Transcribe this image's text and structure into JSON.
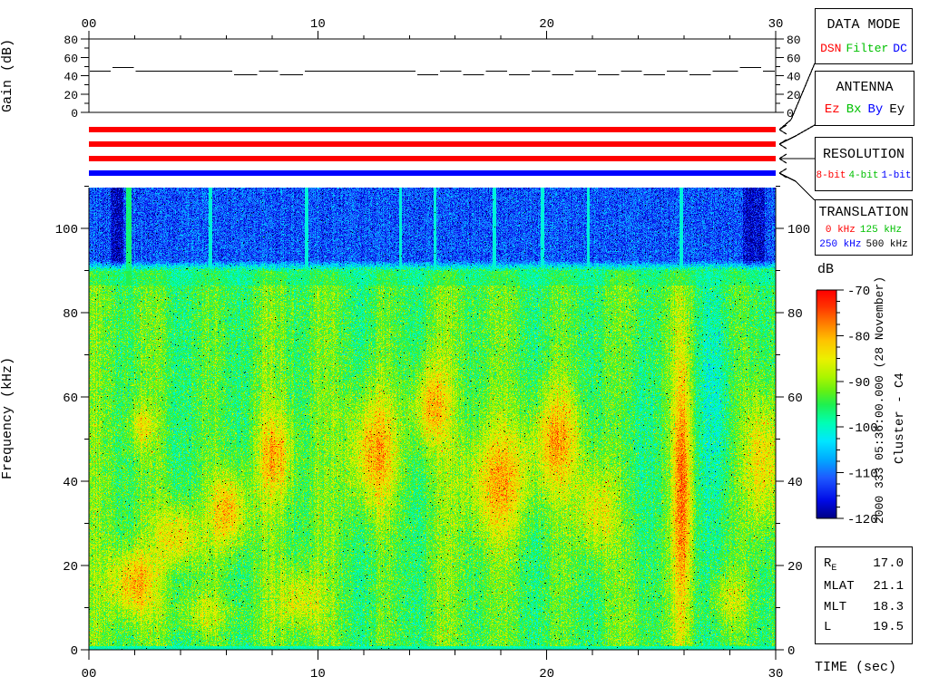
{
  "side_text": {
    "datetime": "2000 333 05:36:00.000 (28 November)",
    "spacecraft": "Cluster - C4"
  },
  "legend_boxes": {
    "data_mode": {
      "title": "DATA MODE",
      "items": [
        {
          "label": "DSN",
          "color": "#ff0000"
        },
        {
          "label": "Filter",
          "color": "#00c000"
        },
        {
          "label": "DC",
          "color": "#0000ff"
        }
      ]
    },
    "antenna": {
      "title": "ANTENNA",
      "items": [
        {
          "label": "Ez",
          "color": "#ff0000"
        },
        {
          "label": "Bx",
          "color": "#00c000"
        },
        {
          "label": "By",
          "color": "#0000ff"
        },
        {
          "label": "Ey",
          "color": "#000000"
        }
      ]
    },
    "resolution": {
      "title": "RESOLUTION",
      "items": [
        {
          "label": "8-bit",
          "color": "#ff0000"
        },
        {
          "label": "4-bit",
          "color": "#00c000"
        },
        {
          "label": "1-bit",
          "color": "#0000ff"
        }
      ]
    },
    "translation": {
      "title": "TRANSLATION",
      "rows": [
        [
          {
            "label": "0 kHz",
            "color": "#ff0000"
          },
          {
            "label": "125 kHz",
            "color": "#00c000"
          }
        ],
        [
          {
            "label": "250 kHz",
            "color": "#0000ff"
          },
          {
            "label": "500 kHz",
            "color": "#000000"
          }
        ]
      ]
    }
  },
  "status_bars": [
    {
      "name": "data-mode",
      "color": "#ff0000"
    },
    {
      "name": "antenna",
      "color": "#ff0000"
    },
    {
      "name": "resolution",
      "color": "#ff0000"
    },
    {
      "name": "translation",
      "color": "#0000ff"
    }
  ],
  "info_table": {
    "rows": [
      {
        "label": "R",
        "sub": "E",
        "value": "17.0"
      },
      {
        "label": "MLAT",
        "value": "21.1"
      },
      {
        "label": "MLT",
        "value": "18.3"
      },
      {
        "label": "L",
        "value": "19.5"
      }
    ]
  },
  "chart_data": [
    {
      "type": "line",
      "name": "receiver-gain",
      "ylabel": "Gain (dB)",
      "xlim": [
        0,
        30
      ],
      "ylim": [
        0,
        80
      ],
      "yticks": [
        0,
        20,
        40,
        60,
        80
      ],
      "ytick_minor_step": 10,
      "xtick_labels": [
        "00",
        "10",
        "20",
        "30"
      ],
      "xtick_values": [
        0,
        10,
        20,
        30
      ],
      "xtick_minor_step": 2,
      "segments": [
        [
          0.0,
          1.0,
          45
        ],
        [
          1.0,
          2.0,
          49
        ],
        [
          2.0,
          6.3,
          45
        ],
        [
          6.3,
          7.4,
          41
        ],
        [
          7.4,
          8.3,
          45
        ],
        [
          8.3,
          9.4,
          41
        ],
        [
          9.4,
          14.3,
          45
        ],
        [
          14.3,
          15.3,
          41
        ],
        [
          15.3,
          16.3,
          45
        ],
        [
          16.3,
          17.3,
          41
        ],
        [
          17.3,
          18.3,
          45
        ],
        [
          18.3,
          19.3,
          41
        ],
        [
          19.3,
          20.2,
          45
        ],
        [
          20.2,
          21.2,
          41
        ],
        [
          21.2,
          22.2,
          45
        ],
        [
          22.2,
          23.2,
          41
        ],
        [
          23.2,
          24.2,
          45
        ],
        [
          24.2,
          25.2,
          41
        ],
        [
          25.2,
          26.2,
          45
        ],
        [
          26.2,
          27.2,
          41
        ],
        [
          27.2,
          28.4,
          45
        ],
        [
          28.4,
          29.4,
          49
        ],
        [
          29.4,
          30.0,
          45
        ]
      ]
    },
    {
      "type": "heatmap",
      "name": "wbd-spectrogram",
      "xlabel": "TIME (sec)",
      "ylabel": "Frequency (kHz)",
      "xlim": [
        0,
        30
      ],
      "ylim": [
        0,
        110
      ],
      "yticks": [
        0,
        20,
        40,
        60,
        80,
        100
      ],
      "ytick_minor_step": 10,
      "xtick_labels": [
        "00",
        "10",
        "20",
        "30"
      ],
      "xtick_values": [
        0,
        10,
        20,
        30
      ],
      "xtick_minor_step": 2,
      "colorbar": {
        "label": "dB",
        "range": [
          -120,
          -70
        ],
        "ticks": [
          -70,
          -80,
          -90,
          -100,
          -110,
          -120
        ],
        "tick_minor_step": 2.5,
        "colormap_stops": [
          [
            0.0,
            0,
            0,
            130
          ],
          [
            0.08,
            0,
            10,
            230
          ],
          [
            0.18,
            30,
            90,
            255
          ],
          [
            0.26,
            0,
            170,
            255
          ],
          [
            0.34,
            0,
            230,
            255
          ],
          [
            0.42,
            0,
            255,
            180
          ],
          [
            0.5,
            30,
            240,
            80
          ],
          [
            0.56,
            100,
            240,
            20
          ],
          [
            0.62,
            170,
            245,
            0
          ],
          [
            0.7,
            235,
            240,
            0
          ],
          [
            0.78,
            255,
            195,
            0
          ],
          [
            0.86,
            255,
            120,
            0
          ],
          [
            0.93,
            255,
            50,
            0
          ],
          [
            1.0,
            255,
            0,
            0
          ]
        ]
      },
      "model": {
        "high_freq_floor_db": -111.5,
        "high_freq_start_khz": 90,
        "band_khz": [
          86.5,
          90
        ],
        "band_level_db": -96,
        "low_freq_level_db": -93.5,
        "stripe": {
          "period_s": 2.55,
          "amp_db": 2.2,
          "period2_s": 7.6,
          "amp2_db": 1.2
        },
        "dark_bands_t": [
          [
            0.95,
            1.5
          ],
          [
            28.55,
            29.5
          ]
        ],
        "dark_band_delta_db": -5.5,
        "bright_line_t": 1.72,
        "faint_lines_t": [
          5.3,
          9.5,
          13.6,
          15.1,
          17.7,
          19.8,
          21.8,
          25.85
        ],
        "blobs": [
          [
            1.9,
            16,
            1.0,
            8,
            13
          ],
          [
            3.9,
            27,
            0.9,
            8,
            12
          ],
          [
            6.1,
            33,
            0.8,
            9,
            14
          ],
          [
            8.1,
            46,
            0.8,
            10,
            11
          ],
          [
            9.2,
            12,
            0.9,
            7,
            9
          ],
          [
            12.4,
            47,
            1.1,
            14,
            14
          ],
          [
            14.9,
            58,
            0.8,
            10,
            12
          ],
          [
            17.9,
            40,
            1.4,
            13,
            12
          ],
          [
            20.4,
            50,
            1.1,
            12,
            13
          ],
          [
            22.1,
            33,
            0.9,
            11,
            10
          ],
          [
            25.9,
            38,
            0.4,
            32,
            15
          ],
          [
            29.4,
            45,
            0.8,
            16,
            12
          ],
          [
            2.3,
            53,
            0.55,
            5,
            8
          ],
          [
            5.0,
            9,
            1.5,
            5,
            6
          ],
          [
            27.9,
            12,
            0.8,
            6,
            7
          ],
          [
            23.8,
            50,
            0.9,
            30,
            -4
          ],
          [
            27.4,
            60,
            0.8,
            25,
            -4
          ]
        ]
      }
    }
  ]
}
